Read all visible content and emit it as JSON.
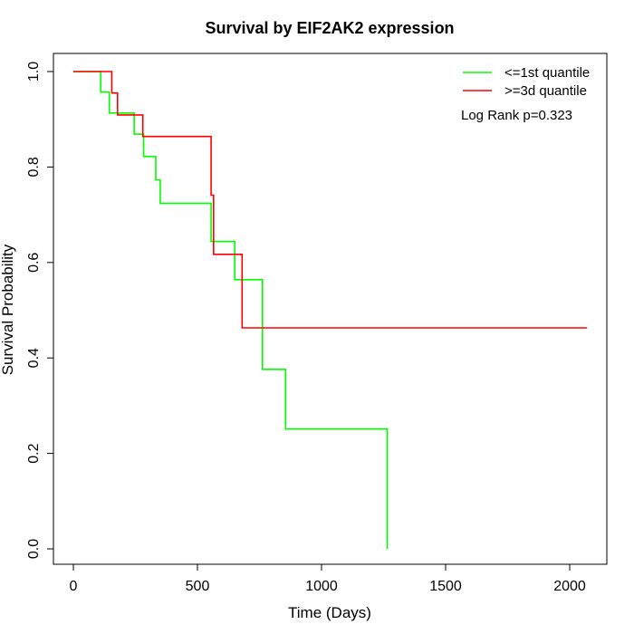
{
  "chart_data": {
    "type": "line",
    "title": "Survival by EIF2AK2 expression",
    "xlabel": "Time (Days)",
    "ylabel": "Survival Probability",
    "xlim": [
      0,
      2070
    ],
    "ylim": [
      0,
      1
    ],
    "x_ticks": [
      0,
      500,
      1000,
      1500,
      2000
    ],
    "y_ticks": [
      0.0,
      0.2,
      0.4,
      0.6,
      0.8,
      1.0
    ],
    "x_tick_labels": [
      "0",
      "500",
      "1000",
      "1500",
      "2000"
    ],
    "y_tick_labels": [
      "0.0",
      "0.2",
      "0.4",
      "0.6",
      "0.8",
      "1.0"
    ],
    "grid": false,
    "legend_position": "top-right",
    "annotation": "Log Rank p=0.323",
    "series": [
      {
        "name": "<=1st quantile",
        "color": "#00ff00",
        "step": true,
        "x": [
          0,
          110,
          145,
          245,
          283,
          332,
          350,
          555,
          650,
          762,
          855,
          1265,
          1265
        ],
        "y": [
          1.0,
          0.957,
          0.913,
          0.869,
          0.822,
          0.773,
          0.724,
          0.644,
          0.564,
          0.376,
          0.251,
          0.251,
          0.0
        ]
      },
      {
        "name": ">=3d quantile",
        "color": "#ff0000",
        "step": true,
        "x": [
          0,
          155,
          178,
          280,
          555,
          565,
          680,
          2070
        ],
        "y": [
          1.0,
          0.955,
          0.909,
          0.864,
          0.741,
          0.617,
          0.463,
          0.463
        ]
      }
    ]
  }
}
